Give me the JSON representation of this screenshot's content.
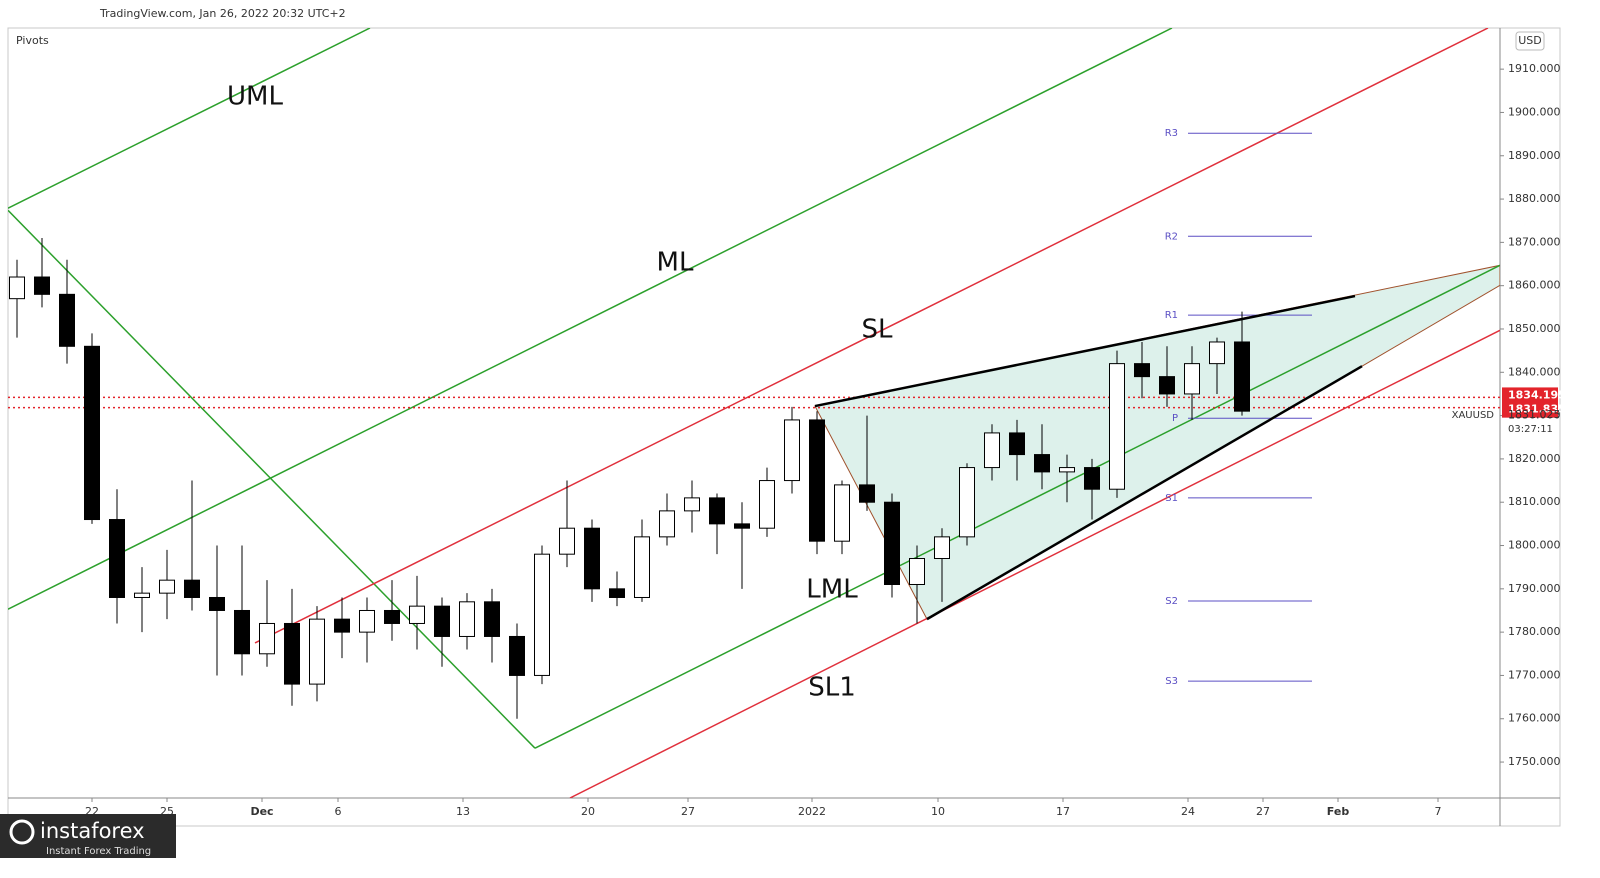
{
  "chart_data": {
    "type": "candlestick",
    "header": "TradingView.com, Jan 26, 2022 20:32 UTC+2",
    "indicator": "Pivots",
    "currency": "USD",
    "symbol": "XAUUSD",
    "countdown": "03:27:11",
    "watermark": {
      "brand": "instaforex",
      "tagline": "Instant Forex Trading"
    },
    "up_color": "#ffffff",
    "down_color": "#000000",
    "x": [
      -3,
      -2,
      -1,
      0,
      1,
      2,
      3,
      4,
      5,
      6,
      7,
      8,
      9,
      10,
      11,
      12,
      13,
      14,
      15,
      16,
      17,
      18,
      19,
      20,
      21,
      22,
      23,
      24,
      25,
      26,
      27,
      28,
      29,
      30,
      31,
      32,
      33,
      34,
      35,
      36,
      37,
      38,
      39,
      40,
      41,
      42,
      43,
      44,
      45,
      46
    ],
    "open": [
      1857,
      1862,
      1858,
      1846,
      1806,
      1788,
      1789,
      1792,
      1788,
      1785,
      1775,
      1782,
      1768,
      1783,
      1780,
      1785,
      1782,
      1786,
      1779,
      1787,
      1779,
      1770,
      1798,
      1804,
      1790,
      1788,
      1802,
      1808,
      1811,
      1805,
      1804,
      1815,
      1829,
      1801,
      1814,
      1810,
      1791,
      1797,
      1802,
      1818,
      1826,
      1821,
      1817,
      1818,
      1813,
      1842,
      1839,
      1835,
      1842,
      1847
    ],
    "high": [
      1866,
      1871,
      1866,
      1849,
      1813,
      1795,
      1799,
      1815,
      1800,
      1800,
      1792,
      1790,
      1786,
      1788,
      1788,
      1792,
      1793,
      1788,
      1789,
      1790,
      1782,
      1800,
      1815,
      1806,
      1794,
      1806,
      1812,
      1815,
      1812,
      1810,
      1818,
      1832,
      1831,
      1815,
      1830,
      1812,
      1800,
      1804,
      1819,
      1828,
      1829,
      1828,
      1821,
      1820,
      1845,
      1847,
      1846,
      1846,
      1848,
      1854
    ],
    "low": [
      1848,
      1855,
      1842,
      1805,
      1782,
      1780,
      1783,
      1785,
      1770,
      1770,
      1772,
      1763,
      1764,
      1774,
      1773,
      1778,
      1776,
      1772,
      1776,
      1773,
      1760,
      1768,
      1795,
      1787,
      1786,
      1787,
      1800,
      1803,
      1798,
      1790,
      1802,
      1812,
      1798,
      1798,
      1808,
      1788,
      1782,
      1787,
      1800,
      1815,
      1815,
      1813,
      1810,
      1806,
      1811,
      1834,
      1832,
      1829,
      1835,
      1830
    ],
    "close": [
      1862,
      1858,
      1846,
      1806,
      1788,
      1789,
      1792,
      1788,
      1785,
      1775,
      1782,
      1768,
      1783,
      1780,
      1785,
      1782,
      1786,
      1779,
      1787,
      1779,
      1770,
      1798,
      1804,
      1790,
      1788,
      1802,
      1808,
      1811,
      1805,
      1804,
      1815,
      1829,
      1801,
      1814,
      1810,
      1791,
      1797,
      1802,
      1818,
      1826,
      1821,
      1817,
      1818,
      1813,
      1842,
      1839,
      1835,
      1842,
      1847,
      1831.025
    ],
    "xlim": [
      -3.36,
      56.32
    ],
    "ylim": [
      1741.7,
      1919.5
    ],
    "xticks": [
      {
        "value": 0,
        "label": "22"
      },
      {
        "value": 3,
        "label": "25"
      },
      {
        "value": 6.8,
        "label": "Dec"
      },
      {
        "value": 9.84,
        "label": "6"
      },
      {
        "value": 14.84,
        "label": "13"
      },
      {
        "value": 19.84,
        "label": "20"
      },
      {
        "value": 23.84,
        "label": "27"
      },
      {
        "value": 28.8,
        "label": "2022"
      },
      {
        "value": 33.84,
        "label": "10"
      },
      {
        "value": 38.84,
        "label": "17"
      },
      {
        "value": 43.84,
        "label": "24"
      },
      {
        "value": 46.84,
        "label": "27"
      },
      {
        "value": 49.84,
        "label": "Feb"
      },
      {
        "value": 53.84,
        "label": "7"
      }
    ],
    "yticks": [
      {
        "value": 1750,
        "label": "1750.000"
      },
      {
        "value": 1760,
        "label": "1760.000"
      },
      {
        "value": 1770,
        "label": "1770.000"
      },
      {
        "value": 1780,
        "label": "1780.000"
      },
      {
        "value": 1790,
        "label": "1790.000"
      },
      {
        "value": 1800,
        "label": "1800.000"
      },
      {
        "value": 1810,
        "label": "1810.000"
      },
      {
        "value": 1820,
        "label": "1820.000"
      },
      {
        "value": 1830,
        "label": "1830.000"
      },
      {
        "value": 1840,
        "label": "1840.000"
      },
      {
        "value": 1850,
        "label": "1850.000"
      },
      {
        "value": 1860,
        "label": "1860.000"
      },
      {
        "value": 1870,
        "label": "1870.000"
      },
      {
        "value": 1880,
        "label": "1880.000"
      },
      {
        "value": 1890,
        "label": "1890.000"
      },
      {
        "value": 1900,
        "label": "1900.000"
      },
      {
        "value": 1910,
        "label": "1910.000"
      }
    ],
    "lines": [
      {
        "label": "UML",
        "color": "#2ca02c",
        "points": [
          [
            -3.36,
            1877.9
          ],
          [
            11.12,
            1919.5
          ]
        ]
      },
      {
        "label": "ML",
        "color": "#2ca02c",
        "points": [
          [
            -3.36,
            1785.3
          ],
          [
            43.2,
            1919.5
          ]
        ]
      },
      {
        "label": "SL",
        "color": "#e0303c",
        "points": [
          [
            6.52,
            1777.5
          ],
          [
            55.84,
            1919.5
          ]
        ]
      },
      {
        "label": "LML",
        "color": "#2ca02c",
        "points": [
          [
            17.72,
            1753.2
          ],
          [
            56.32,
            1864.7
          ]
        ]
      },
      {
        "label": "SL1",
        "color": "#e0303c",
        "points": [
          [
            19.12,
            1741.7
          ],
          [
            56.32,
            1849.7
          ]
        ]
      }
    ],
    "handle": {
      "color": "#2ca02c",
      "points": [
        [
          -3.36,
          1877.4
        ],
        [
          17.72,
          1753.2
        ]
      ]
    },
    "wedge": {
      "fill": "#d4ede6",
      "edge": "#a0522d",
      "points": [
        [
          28.92,
          1832.2
        ],
        [
          56.32,
          1864.7
        ],
        [
          56.32,
          1860.1
        ],
        [
          50.8,
          1841.4
        ],
        [
          33.4,
          1783.0
        ]
      ],
      "upper": [
        [
          28.92,
          1832.2
        ],
        [
          50.52,
          1857.6
        ]
      ],
      "lower": [
        [
          33.4,
          1783.0
        ],
        [
          50.8,
          1841.4
        ]
      ]
    },
    "pivots": [
      {
        "label": "R3",
        "value": 1895.2
      },
      {
        "label": "R2",
        "value": 1871.4
      },
      {
        "label": "R1",
        "value": 1853.2
      },
      {
        "label": "P",
        "value": 1829.4
      },
      {
        "label": "S1",
        "value": 1811
      },
      {
        "label": "S2",
        "value": 1787.2
      },
      {
        "label": "S3",
        "value": 1768.7
      }
    ],
    "pivot_x": [
      43.84,
      48.8
    ],
    "pivot_color": "#5b4fc4",
    "price_lines": [
      {
        "value": 1834.195,
        "color": "#e3242b"
      },
      {
        "value": 1831.835,
        "color": "#e3242b"
      }
    ]
  }
}
